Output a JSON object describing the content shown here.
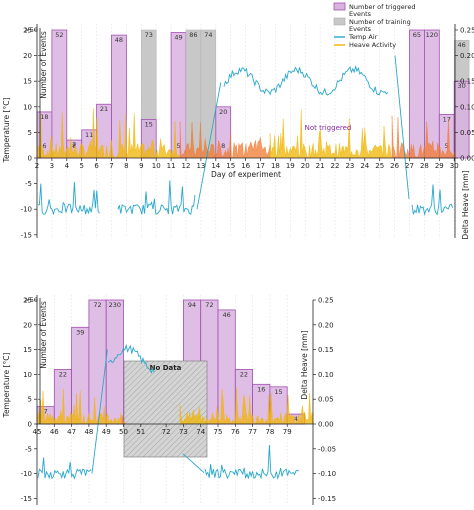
{
  "colors": {
    "triggered_fill": "#d9b3e0",
    "triggered_stroke": "#a24fb0",
    "training_fill": "#c8c8c8",
    "temp_air": "#2aa8cc",
    "heave_top": "#f0b400",
    "heave_bottom": "#f07a30",
    "nodata_fill": "#cccccc",
    "not_triggered_text": "#8a2aa0"
  },
  "legend": {
    "triggered": "Number of triggered",
    "triggered_2": "Events",
    "training": "Number of training",
    "training_2": "Events",
    "temp": "Temp Air",
    "heave": "Heave Activity"
  },
  "chart_data": [
    {
      "type": "bar",
      "x": [
        2,
        3,
        4,
        5,
        6,
        7,
        8,
        9,
        10,
        11,
        12,
        13,
        14,
        15,
        16,
        17,
        18,
        19,
        20,
        21,
        22,
        23,
        24,
        25,
        26,
        27,
        28,
        29,
        30
      ],
      "xlabel": "Day of experiment",
      "y_events_label": "Number of Events",
      "y_temp_label": "Temperature [°C]",
      "y_heave_label": "Delta Heave [mm]",
      "top_label": ">50",
      "temp_ticks": [
        "25",
        "20",
        "15",
        "10",
        "5",
        "0",
        "-5",
        "-10",
        "-15"
      ],
      "heave_ticks": [
        "0.25",
        "0.20",
        "0.15",
        "0.10",
        "0.05",
        "0.00"
      ],
      "temp_range": [
        -15,
        25
      ],
      "heave_range": [
        0,
        0.25
      ],
      "annotation": "Not triggered",
      "legend_position": "top-right",
      "bars": [
        {
          "day": 2,
          "triggered": 18,
          "training": 0
        },
        {
          "day": 3,
          "triggered": 52,
          "training": 0
        },
        {
          "day": 4,
          "triggered": 7,
          "training": 0
        },
        {
          "day": 5,
          "triggered": 11,
          "training": 0
        },
        {
          "day": 6,
          "triggered": 21,
          "training": 0
        },
        {
          "day": 7,
          "triggered": 48,
          "training": 0
        },
        {
          "day": 9,
          "triggered": 15,
          "training": 73
        },
        {
          "day": 11,
          "triggered": 49,
          "training": 0
        },
        {
          "day": 12,
          "triggered": 0,
          "training": 86
        },
        {
          "day": 13,
          "triggered": 0,
          "training": 74
        },
        {
          "day": 14,
          "triggered": 20,
          "training": 0
        },
        {
          "day": 27,
          "triggered": 65,
          "training": 0
        },
        {
          "day": 28,
          "triggered": 120,
          "training": 0
        },
        {
          "day": 29,
          "triggered": 17,
          "training": 0
        },
        {
          "day": 30,
          "triggered": 30,
          "training": 46
        }
      ],
      "extra_labels": [
        {
          "day": 2.5,
          "label": "6"
        },
        {
          "day": 4.5,
          "label": "8"
        },
        {
          "day": 11.5,
          "label": "5"
        },
        {
          "day": 14.5,
          "label": "8"
        },
        {
          "day": 29.5,
          "label": "5"
        }
      ]
    },
    {
      "type": "bar",
      "x": [
        45,
        46,
        47,
        48,
        49,
        50,
        51,
        72,
        73,
        74,
        75,
        76,
        77,
        78,
        79
      ],
      "xlabel": "",
      "y_events_label": "Number of Events",
      "y_temp_label": "Temperature [°C]",
      "y_heave_label": "Delta Heave [mm]",
      "top_label": ">50",
      "temp_ticks": [
        "25",
        "20",
        "15",
        "10",
        "5",
        "0",
        "-5",
        "-10",
        "-15"
      ],
      "heave_ticks": [
        "0.25",
        "0.20",
        "0.15",
        "0.10",
        "0.05",
        "0.00",
        "-0.05",
        "-0.10",
        "-0.15"
      ],
      "temp_range": [
        -15,
        25
      ],
      "heave_range": [
        -0.15,
        0.25
      ],
      "nodata_label": "No Data",
      "legend_position": "none",
      "bars": [
        {
          "day": 45,
          "triggered": 7,
          "training": 0
        },
        {
          "day": 46,
          "triggered": 22,
          "training": 0
        },
        {
          "day": 47,
          "triggered": 39,
          "training": 0
        },
        {
          "day": 48,
          "triggered": 72,
          "training": 0
        },
        {
          "day": 49,
          "triggered": 230,
          "training": 0
        },
        {
          "day": 73,
          "triggered": 94,
          "training": 0
        },
        {
          "day": 74,
          "triggered": 72,
          "training": 0
        },
        {
          "day": 75,
          "triggered": 46,
          "training": 0
        },
        {
          "day": 76,
          "triggered": 22,
          "training": 0
        },
        {
          "day": 77,
          "triggered": 16,
          "training": 0
        },
        {
          "day": 78,
          "triggered": 15,
          "training": 0
        },
        {
          "day": 79,
          "triggered": 4,
          "training": 0
        }
      ]
    }
  ]
}
